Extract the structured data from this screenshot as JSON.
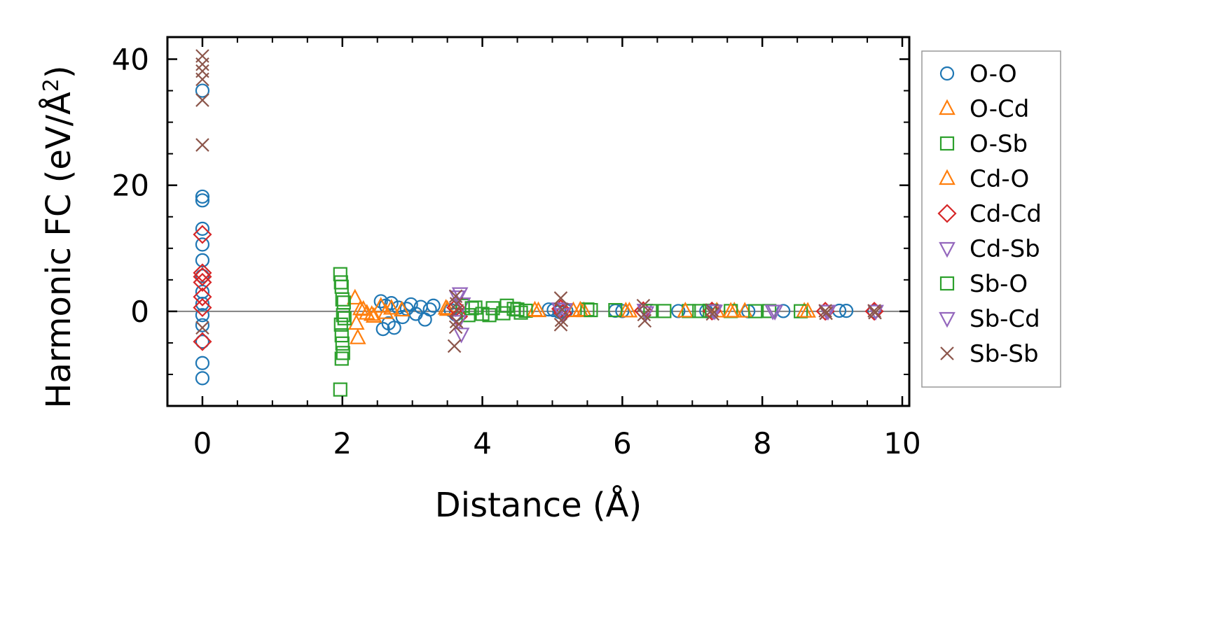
{
  "chart_data": {
    "type": "scatter",
    "xlabel": "Distance (Å)",
    "ylabel_main": "Harmonic FC (eV/Å",
    "ylabel_sup": "2",
    "ylabel_close": ")",
    "xlim": [
      -0.5,
      10.1
    ],
    "ylim": [
      -15,
      43.5
    ],
    "xticks": [
      0,
      2,
      4,
      6,
      8,
      10
    ],
    "xtick_labels": [
      "0",
      "2",
      "4",
      "6",
      "8",
      "10"
    ],
    "yticks": [
      0,
      20,
      40
    ],
    "ytick_labels": [
      "0",
      "20",
      "40"
    ],
    "zero_line": 0,
    "grid": false,
    "legend_position": "outside-right",
    "series": [
      {
        "name": "O-O",
        "marker": "circle",
        "color": "#1f77b4",
        "points": [
          [
            0,
            35
          ],
          [
            0,
            18.2
          ],
          [
            0,
            17.6
          ],
          [
            0,
            13.1
          ],
          [
            0,
            10.6
          ],
          [
            0,
            8.1
          ],
          [
            0,
            5.6
          ],
          [
            0,
            3.1
          ],
          [
            0,
            1.2
          ],
          [
            0,
            -0.6
          ],
          [
            0,
            -2.2
          ],
          [
            0,
            -4.8
          ],
          [
            0,
            -8.2
          ],
          [
            0,
            -10.6
          ],
          [
            2.55,
            1.6
          ],
          [
            2.58,
            -2.8
          ],
          [
            2.62,
            0.9
          ],
          [
            2.66,
            -1.9
          ],
          [
            2.7,
            1.3
          ],
          [
            2.74,
            -2.6
          ],
          [
            2.8,
            0.6
          ],
          [
            2.86,
            -0.9
          ],
          [
            2.92,
            0.4
          ],
          [
            2.98,
            1.1
          ],
          [
            3.05,
            -0.4
          ],
          [
            3.12,
            0.7
          ],
          [
            3.18,
            -1.3
          ],
          [
            3.25,
            0.3
          ],
          [
            3.3,
            0.9
          ],
          [
            3.55,
            0.2
          ],
          [
            3.62,
            -0.5
          ],
          [
            4.95,
            0.3
          ],
          [
            5.02,
            0.2
          ],
          [
            5.1,
            -0.1
          ],
          [
            5.2,
            0.1
          ],
          [
            5.9,
            0.1
          ],
          [
            6.0,
            0.05
          ],
          [
            6.8,
            0.05
          ],
          [
            7.2,
            0.03
          ],
          [
            7.8,
            0.02
          ],
          [
            8.3,
            0.05
          ],
          [
            9.1,
            0.1
          ],
          [
            9.2,
            0.08
          ],
          [
            9.6,
            0.03
          ]
        ]
      },
      {
        "name": "O-Cd",
        "marker": "triangle-up",
        "color": "#ff7f0e",
        "points": [
          [
            2.18,
            2.1
          ],
          [
            2.2,
            -1.9
          ],
          [
            2.22,
            -4.2
          ],
          [
            2.26,
            0.4
          ],
          [
            2.35,
            -0.3
          ],
          [
            2.45,
            -0.8
          ],
          [
            2.7,
            0.5
          ],
          [
            2.85,
            0.2
          ],
          [
            3.5,
            0.3
          ],
          [
            4.75,
            0.2
          ],
          [
            5.3,
            0.1
          ],
          [
            5.45,
            0.1
          ],
          [
            6.05,
            0.05
          ],
          [
            7.35,
            0.05
          ],
          [
            7.6,
            0.05
          ],
          [
            7.75,
            0.03
          ],
          [
            8.6,
            0.02
          ]
        ]
      },
      {
        "name": "O-Sb",
        "marker": "square",
        "color": "#2ca02c",
        "points": [
          [
            1.97,
            5.9
          ],
          [
            1.98,
            4.6
          ],
          [
            1.99,
            3.9
          ],
          [
            2.0,
            1.9
          ],
          [
            2.01,
            -0.6
          ],
          [
            1.98,
            -2.1
          ],
          [
            1.99,
            -3.8
          ],
          [
            2.0,
            -5.1
          ],
          [
            2.01,
            -6.6
          ],
          [
            1.99,
            -7.5
          ],
          [
            1.97,
            -12.4
          ],
          [
            3.72,
            0.9
          ],
          [
            3.8,
            -0.6
          ],
          [
            3.9,
            0.6
          ],
          [
            4.0,
            -0.4
          ],
          [
            4.15,
            0.5
          ],
          [
            4.3,
            -0.3
          ],
          [
            4.45,
            0.4
          ],
          [
            4.55,
            -0.2
          ],
          [
            4.62,
            0.1
          ],
          [
            5.5,
            0.3
          ],
          [
            5.9,
            0.2
          ],
          [
            6.6,
            0.05
          ],
          [
            6.95,
            0.05
          ],
          [
            7.25,
            0.1
          ],
          [
            7.55,
            0.05
          ],
          [
            8.1,
            0.05
          ],
          [
            8.55,
            0.02
          ]
        ]
      },
      {
        "name": "Cd-O",
        "marker": "triangle-up",
        "color": "#ff7f0e",
        "points": [
          [
            2.3,
            0.3
          ],
          [
            2.42,
            -0.5
          ],
          [
            2.55,
            0.8
          ],
          [
            2.62,
            -0.2
          ],
          [
            3.48,
            0.5
          ],
          [
            4.8,
            0.1
          ],
          [
            5.4,
            0.2
          ],
          [
            6.1,
            0.05
          ],
          [
            6.9,
            0.05
          ],
          [
            7.55,
            0.02
          ],
          [
            8.65,
            0.02
          ]
        ]
      },
      {
        "name": "Cd-Cd",
        "marker": "diamond",
        "color": "#d62728",
        "points": [
          [
            0,
            12.2
          ],
          [
            0,
            6.1
          ],
          [
            0,
            5.5
          ],
          [
            0,
            4.6
          ],
          [
            0,
            2.3
          ],
          [
            0,
            0.6
          ],
          [
            0,
            -4.8
          ],
          [
            3.62,
            0.6
          ],
          [
            3.66,
            -0.8
          ],
          [
            5.12,
            0.4
          ],
          [
            5.15,
            -0.3
          ],
          [
            6.3,
            0.1
          ],
          [
            7.28,
            0.05
          ],
          [
            8.9,
            0.02
          ],
          [
            9.6,
            0.02
          ]
        ]
      },
      {
        "name": "Cd-Sb",
        "marker": "triangle-down",
        "color": "#9467bd",
        "points": [
          [
            3.68,
            2.8
          ],
          [
            3.7,
            -3.6
          ],
          [
            3.72,
            1.2
          ],
          [
            5.1,
            0.4
          ],
          [
            5.14,
            -0.5
          ],
          [
            6.32,
            0.2
          ],
          [
            7.3,
            0.1
          ],
          [
            8.15,
            0.05
          ],
          [
            8.92,
            0.02
          ],
          [
            9.62,
            0.02
          ]
        ]
      },
      {
        "name": "Sb-O",
        "marker": "square",
        "color": "#2ca02c",
        "points": [
          [
            2.02,
            1.4
          ],
          [
            2.03,
            -1.1
          ],
          [
            3.85,
            0.5
          ],
          [
            4.1,
            -0.6
          ],
          [
            4.35,
            0.9
          ],
          [
            4.5,
            0.3
          ],
          [
            5.55,
            0.2
          ],
          [
            6.4,
            0.05
          ],
          [
            7.1,
            0.05
          ],
          [
            7.9,
            0.03
          ]
        ]
      },
      {
        "name": "Sb-Cd",
        "marker": "triangle-down",
        "color": "#9467bd",
        "points": [
          [
            3.64,
            2.3
          ],
          [
            3.66,
            -1.6
          ],
          [
            5.18,
            0.3
          ],
          [
            6.34,
            -0.2
          ],
          [
            7.32,
            0.05
          ],
          [
            8.18,
            0.02
          ],
          [
            8.94,
            0.03
          ]
        ]
      },
      {
        "name": "Sb-Sb",
        "marker": "x",
        "color": "#8c564b",
        "points": [
          [
            0,
            40.5
          ],
          [
            0,
            39.2
          ],
          [
            0,
            38.1
          ],
          [
            0,
            36.8
          ],
          [
            0,
            33.5
          ],
          [
            0,
            26.4
          ],
          [
            0,
            -2.6
          ],
          [
            3.62,
            2.4
          ],
          [
            3.63,
            1.2
          ],
          [
            3.64,
            0.1
          ],
          [
            3.63,
            -1.6
          ],
          [
            3.62,
            -2.5
          ],
          [
            3.6,
            -5.5
          ],
          [
            5.12,
            2.1
          ],
          [
            5.14,
            0.3
          ],
          [
            5.13,
            -1.4
          ],
          [
            5.12,
            -2.1
          ],
          [
            6.3,
            0.9
          ],
          [
            6.31,
            -0.5
          ],
          [
            6.32,
            -1.5
          ],
          [
            7.28,
            0.2
          ],
          [
            7.29,
            -0.4
          ],
          [
            8.9,
            0.1
          ],
          [
            8.91,
            -0.3
          ],
          [
            9.6,
            0.1
          ],
          [
            9.61,
            -0.2
          ]
        ]
      }
    ]
  }
}
